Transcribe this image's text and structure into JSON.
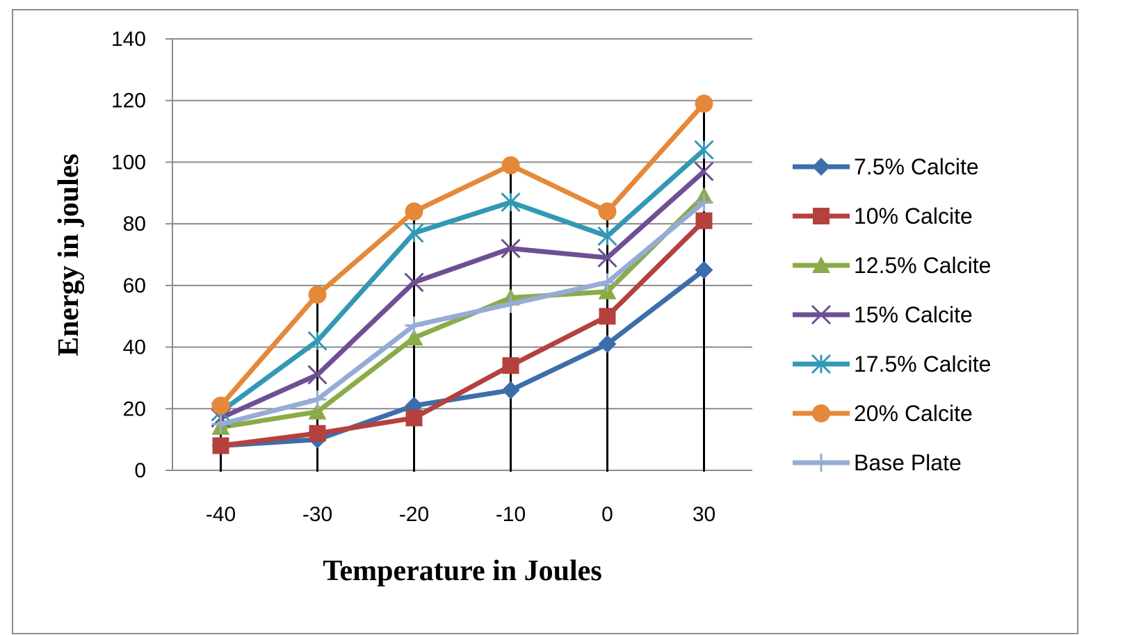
{
  "chart_data": {
    "type": "line",
    "title": "",
    "xlabel": "Temperature in Joules",
    "ylabel": "Energy in joules",
    "categories": [
      "-40",
      "-30",
      "-20",
      "-10",
      "0",
      "30"
    ],
    "ylim": [
      0,
      140
    ],
    "yticks": [
      0,
      20,
      40,
      60,
      80,
      100,
      120,
      140
    ],
    "grid": true,
    "legend_position": "right",
    "high_low_lines": true,
    "series": [
      {
        "name": "7.5% Calcite",
        "color": "#3d6eab",
        "marker": "diamond",
        "values": [
          8,
          10,
          21,
          26,
          41,
          65
        ]
      },
      {
        "name": "10% Calcite",
        "color": "#b5413e",
        "marker": "square",
        "values": [
          8,
          12,
          17,
          34,
          50,
          81
        ]
      },
      {
        "name": "12.5% Calcite",
        "color": "#8aab47",
        "marker": "triangle",
        "values": [
          14,
          19,
          43,
          56,
          58,
          89
        ]
      },
      {
        "name": "15% Calcite",
        "color": "#6e4f94",
        "marker": "x",
        "values": [
          17,
          31,
          61,
          72,
          69,
          97
        ]
      },
      {
        "name": "17.5% Calcite",
        "color": "#3299b4",
        "marker": "star",
        "values": [
          19,
          42,
          77,
          87,
          76,
          104
        ]
      },
      {
        "name": "20% Calcite",
        "color": "#e5883a",
        "marker": "circle",
        "values": [
          21,
          57,
          84,
          99,
          84,
          119
        ]
      },
      {
        "name": "Base Plate",
        "color": "#95acd6",
        "marker": "plus",
        "values": [
          15,
          23,
          47,
          54,
          61,
          87
        ]
      }
    ]
  }
}
